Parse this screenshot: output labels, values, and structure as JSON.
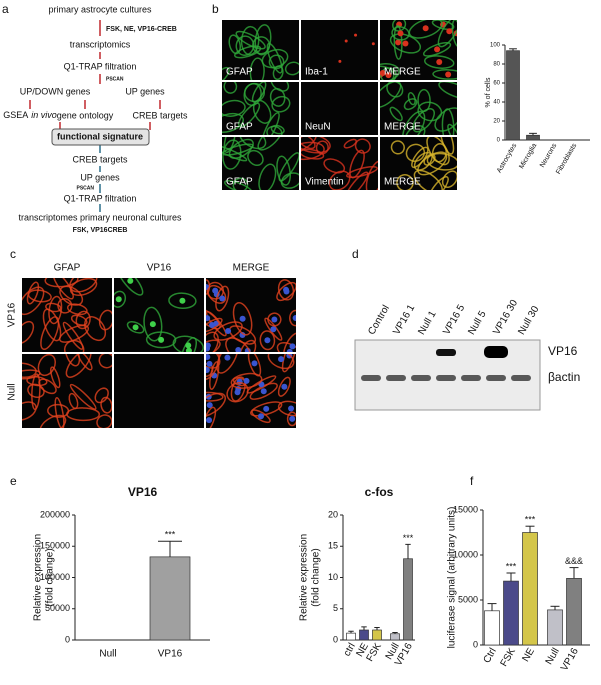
{
  "panel_labels": [
    "a",
    "b",
    "c",
    "d",
    "e",
    "f"
  ],
  "flowchart": {
    "nodes": [
      "primary astrocyte cultures",
      "transcriptomics",
      "Q1-TRAP filtration",
      "UP/DOWN genes",
      "UP genes",
      "gene ontology",
      "CREB targets",
      "functional signature",
      "CREB targets",
      "UP genes",
      "Q1-TRAP filtration",
      "transcriptomes primary neuronal cultures"
    ],
    "gsea": "GSEA",
    "in_vivo": "in vivo",
    "treatments_top": "FSK, NE, VP16-CREB",
    "treatments_bottom": "FSK, VP16CREB",
    "pscan_labels": [
      "PSCAN",
      "PSCAN"
    ]
  },
  "micrographs_b": [
    [
      "GFAP",
      "Iba-1",
      "MERGE"
    ],
    [
      "GFAP",
      "NeuN",
      "MERGE"
    ],
    [
      "GFAP",
      "Vimentin",
      "MERGE"
    ]
  ],
  "micrographs_c": {
    "column_labels": [
      "GFAP",
      "VP16",
      "MERGE"
    ],
    "row_labels": [
      "VP16",
      "Null"
    ]
  },
  "western_blot": {
    "lanes": [
      "Control",
      "VP16 1",
      "Null 1",
      "VP16 5",
      "Null 5",
      "VP16 30",
      "Null 30"
    ],
    "bands": [
      "VP16",
      "βactin"
    ]
  },
  "chart_data": [
    {
      "type": "bar",
      "ylabel": [
        "% of cells"
      ],
      "categories": [
        "Astrocytes",
        "Microglia",
        "Neurons",
        "Fibroblasts"
      ],
      "values": [
        94,
        5,
        0,
        0
      ],
      "errors": [
        2,
        2,
        0,
        0
      ],
      "colors": [
        "#555555",
        "#555555",
        "#555555",
        "#555555"
      ],
      "ylim": [
        0,
        100
      ],
      "yticks": [
        0,
        20,
        40,
        60,
        80,
        100
      ]
    },
    {
      "type": "bar",
      "title": "VP16",
      "ylabel": [
        "Relative expression",
        "(fold change)"
      ],
      "categories": [
        "Null",
        "VP16"
      ],
      "values": [
        0,
        133000
      ],
      "errors": [
        0,
        25000
      ],
      "colors": [
        "#a0a0a0",
        "#a0a0a0"
      ],
      "significance": [
        null,
        "***"
      ],
      "ylim": [
        0,
        200000
      ],
      "yticks": [
        0,
        50000,
        100000,
        150000,
        200000
      ]
    },
    {
      "type": "bar",
      "title": "c-fos",
      "ylabel": [
        "Relative expression",
        "(fold change)"
      ],
      "categories": [
        "ctrl",
        "NE",
        "FSK",
        "Null",
        "VP16"
      ],
      "values": [
        1.1,
        1.6,
        1.6,
        1.0,
        13.0
      ],
      "errors": [
        0.3,
        0.5,
        0.4,
        0.2,
        2.3
      ],
      "colors": [
        "#ffffff",
        "#4b4a8a",
        "#d4c64a",
        "#c0c0c8",
        "#808080"
      ],
      "significance": [
        null,
        null,
        null,
        null,
        "***"
      ],
      "ylim": [
        0,
        20
      ],
      "yticks": [
        0,
        5,
        10,
        15,
        20
      ]
    },
    {
      "type": "bar",
      "ylabel": [
        "luciferase signal (arbitrary units)"
      ],
      "categories": [
        "Ctrl",
        "FSK",
        "NE",
        "Null",
        "VP16"
      ],
      "values": [
        3800,
        7100,
        12500,
        3900,
        7400
      ],
      "errors": [
        800,
        900,
        700,
        400,
        1200
      ],
      "colors": [
        "#ffffff",
        "#4b4a8a",
        "#d4c64a",
        "#c0c0c8",
        "#808080"
      ],
      "significance": [
        null,
        "***",
        "***",
        null,
        "&&&"
      ],
      "ylim": [
        0,
        15000
      ],
      "yticks": [
        0,
        5000,
        10000,
        15000
      ]
    }
  ]
}
